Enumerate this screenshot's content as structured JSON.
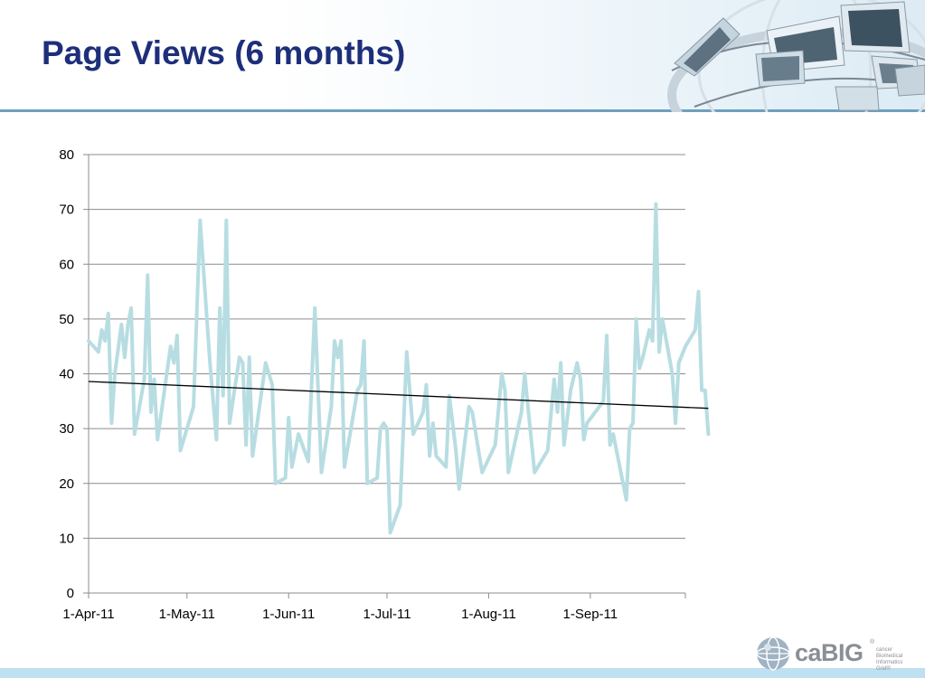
{
  "slide": {
    "title": "Page Views (6 months)",
    "logo": {
      "text": "caBIG",
      "registered": "®",
      "subtitle": "cancer Biomedical Informatics Grid®"
    }
  },
  "chart_data": {
    "type": "line",
    "title": "",
    "xlabel": "",
    "ylabel": "",
    "ylim": [
      0,
      80
    ],
    "yticks": [
      0,
      10,
      20,
      30,
      40,
      50,
      60,
      70,
      80
    ],
    "xlim": [
      "2011-04-01",
      "2011-09-30"
    ],
    "xtick_dates": [
      "2011-04-01",
      "2011-05-01",
      "2011-06-01",
      "2011-07-01",
      "2011-08-01",
      "2011-09-01"
    ],
    "xtick_labels": [
      "1-Apr-11",
      "1-May-11",
      "1-Jun-11",
      "1-Jul-11",
      "1-Aug-11",
      "1-Sep-11"
    ],
    "grid": true,
    "legend": "none",
    "series": [
      {
        "color": "#b7dde2",
        "points": [
          [
            "2011-04-01",
            46
          ],
          [
            "2011-04-04",
            44
          ],
          [
            "2011-04-05",
            48
          ],
          [
            "2011-04-06",
            46
          ],
          [
            "2011-04-07",
            51
          ],
          [
            "2011-04-08",
            31
          ],
          [
            "2011-04-09",
            40
          ],
          [
            "2011-04-11",
            49
          ],
          [
            "2011-04-12",
            43
          ],
          [
            "2011-04-13",
            49
          ],
          [
            "2011-04-14",
            52
          ],
          [
            "2011-04-15",
            29
          ],
          [
            "2011-04-18",
            39
          ],
          [
            "2011-04-19",
            58
          ],
          [
            "2011-04-20",
            33
          ],
          [
            "2011-04-21",
            39
          ],
          [
            "2011-04-22",
            28
          ],
          [
            "2011-04-26",
            45
          ],
          [
            "2011-04-27",
            42
          ],
          [
            "2011-04-28",
            47
          ],
          [
            "2011-04-29",
            26
          ],
          [
            "2011-05-03",
            34
          ],
          [
            "2011-05-05",
            68
          ],
          [
            "2011-05-08",
            42
          ],
          [
            "2011-05-10",
            28
          ],
          [
            "2011-05-11",
            52
          ],
          [
            "2011-05-12",
            36
          ],
          [
            "2011-05-13",
            68
          ],
          [
            "2011-05-14",
            31
          ],
          [
            "2011-05-17",
            43
          ],
          [
            "2011-05-18",
            42
          ],
          [
            "2011-05-19",
            27
          ],
          [
            "2011-05-20",
            43
          ],
          [
            "2011-05-21",
            25
          ],
          [
            "2011-05-25",
            42
          ],
          [
            "2011-05-27",
            38
          ],
          [
            "2011-05-28",
            20
          ],
          [
            "2011-05-31",
            21
          ],
          [
            "2011-06-01",
            32
          ],
          [
            "2011-06-02",
            23
          ],
          [
            "2011-06-04",
            29
          ],
          [
            "2011-06-07",
            24
          ],
          [
            "2011-06-09",
            52
          ],
          [
            "2011-06-11",
            22
          ],
          [
            "2011-06-14",
            34
          ],
          [
            "2011-06-15",
            46
          ],
          [
            "2011-06-16",
            43
          ],
          [
            "2011-06-17",
            46
          ],
          [
            "2011-06-18",
            23
          ],
          [
            "2011-06-22",
            37
          ],
          [
            "2011-06-23",
            38
          ],
          [
            "2011-06-24",
            46
          ],
          [
            "2011-06-25",
            20
          ],
          [
            "2011-06-28",
            21
          ],
          [
            "2011-06-29",
            30
          ],
          [
            "2011-06-30",
            31
          ],
          [
            "2011-07-01",
            30
          ],
          [
            "2011-07-02",
            11
          ],
          [
            "2011-07-05",
            16
          ],
          [
            "2011-07-07",
            44
          ],
          [
            "2011-07-09",
            29
          ],
          [
            "2011-07-12",
            33
          ],
          [
            "2011-07-13",
            38
          ],
          [
            "2011-07-14",
            25
          ],
          [
            "2011-07-15",
            31
          ],
          [
            "2011-07-16",
            25
          ],
          [
            "2011-07-19",
            23
          ],
          [
            "2011-07-20",
            36
          ],
          [
            "2011-07-22",
            26
          ],
          [
            "2011-07-23",
            19
          ],
          [
            "2011-07-26",
            34
          ],
          [
            "2011-07-27",
            33
          ],
          [
            "2011-07-30",
            22
          ],
          [
            "2011-08-03",
            27
          ],
          [
            "2011-08-05",
            40
          ],
          [
            "2011-08-06",
            37
          ],
          [
            "2011-08-07",
            22
          ],
          [
            "2011-08-11",
            33
          ],
          [
            "2011-08-12",
            40
          ],
          [
            "2011-08-13",
            34
          ],
          [
            "2011-08-15",
            22
          ],
          [
            "2011-08-19",
            26
          ],
          [
            "2011-08-21",
            39
          ],
          [
            "2011-08-22",
            33
          ],
          [
            "2011-08-23",
            42
          ],
          [
            "2011-08-24",
            27
          ],
          [
            "2011-08-26",
            37
          ],
          [
            "2011-08-28",
            42
          ],
          [
            "2011-08-29",
            39
          ],
          [
            "2011-08-30",
            28
          ],
          [
            "2011-08-31",
            31
          ],
          [
            "2011-09-05",
            35
          ],
          [
            "2011-09-06",
            47
          ],
          [
            "2011-09-07",
            27
          ],
          [
            "2011-09-08",
            29
          ],
          [
            "2011-09-09",
            26
          ],
          [
            "2011-09-12",
            17
          ],
          [
            "2011-09-13",
            30
          ],
          [
            "2011-09-14",
            31
          ],
          [
            "2011-09-15",
            50
          ],
          [
            "2011-09-16",
            41
          ],
          [
            "2011-09-17",
            43
          ],
          [
            "2011-09-19",
            48
          ],
          [
            "2011-09-20",
            46
          ],
          [
            "2011-09-21",
            71
          ],
          [
            "2011-09-22",
            44
          ],
          [
            "2011-09-23",
            50
          ],
          [
            "2011-09-26",
            40
          ],
          [
            "2011-09-27",
            31
          ],
          [
            "2011-09-28",
            42
          ],
          [
            "2011-09-30",
            45
          ],
          [
            "2011-10-03",
            48
          ],
          [
            "2011-10-04",
            55
          ],
          [
            "2011-10-05",
            37
          ],
          [
            "2011-10-06",
            37
          ],
          [
            "2011-10-07",
            29
          ]
        ]
      }
    ],
    "trendline": {
      "type": "linear",
      "color": "#000000",
      "start": [
        "2011-04-01",
        38.6
      ],
      "end": [
        "2011-10-07",
        33.7
      ]
    }
  }
}
